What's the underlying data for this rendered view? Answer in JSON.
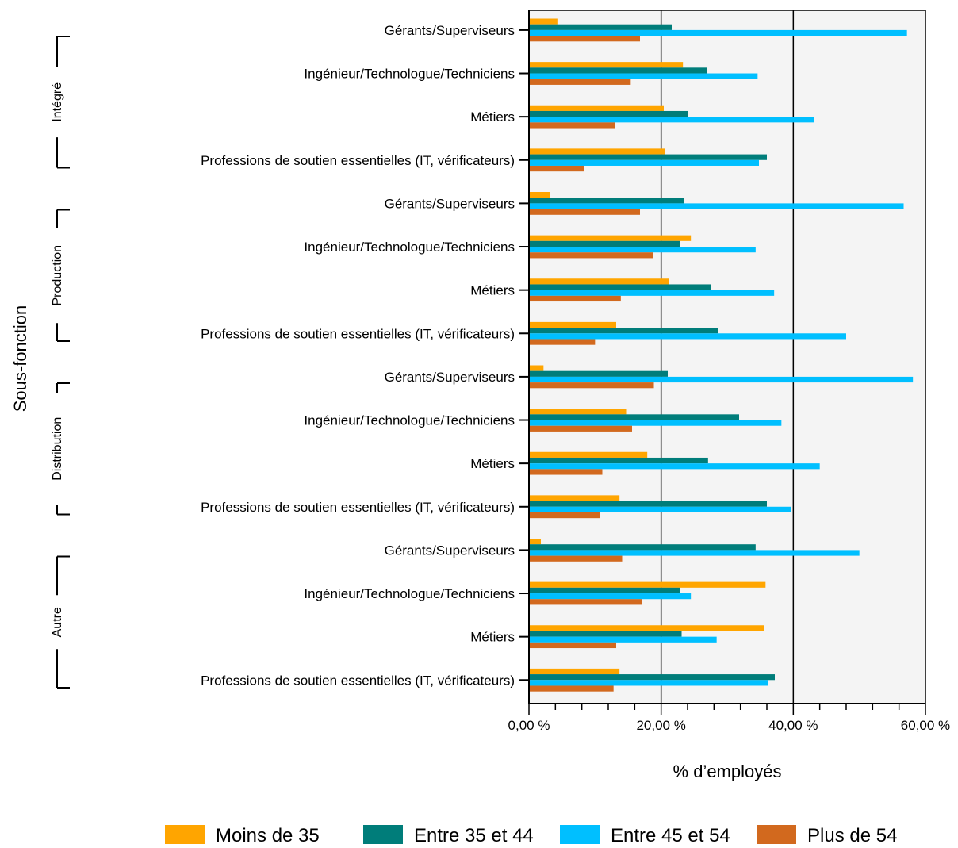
{
  "chart_data": {
    "type": "bar",
    "orientation": "horizontal",
    "title": "",
    "xlabel": "% d’employés",
    "ylabel": "Sous-fonction",
    "xlim": [
      0,
      60
    ],
    "x_ticks": [
      0,
      20,
      40,
      60
    ],
    "x_tick_labels": [
      "0,00 %",
      "20,00 %",
      "40,00 %",
      "60,00 %"
    ],
    "x_minor_step": 4,
    "grid": "vertical major gridlines",
    "legend_position": "bottom",
    "groups": [
      {
        "label": "Intégré",
        "start": 0,
        "end": 3
      },
      {
        "label": "Production",
        "start": 4,
        "end": 7
      },
      {
        "label": "Distribution",
        "start": 8,
        "end": 11
      },
      {
        "label": "Autre",
        "start": 12,
        "end": 15
      }
    ],
    "categories": [
      "Gérants/Superviseurs",
      "Ingénieur/Technologue/Techniciens",
      "Métiers",
      "Professions de soutien essentielles (IT, vérificateurs)",
      "Gérants/Superviseurs",
      "Ingénieur/Technologue/Techniciens",
      "Métiers",
      "Professions de soutien essentielles (IT, vérificateurs)",
      "Gérants/Superviseurs",
      "Ingénieur/Technologue/Techniciens",
      "Métiers",
      "Professions de soutien essentielles (IT, vérificateurs)",
      "Gérants/Superviseurs",
      "Ingénieur/Technologue/Techniciens",
      "Métiers",
      "Professions de soutien essentielles (IT, vérificateurs)"
    ],
    "series": [
      {
        "name": "Moins de 35",
        "color": "#FFA500",
        "values": [
          4.3,
          23.3,
          20.4,
          20.6,
          3.2,
          24.5,
          21.2,
          13.2,
          2.2,
          14.7,
          17.9,
          13.7,
          1.8,
          35.8,
          35.6,
          13.7
        ]
      },
      {
        "name": "Entre 35 et 44",
        "color": "#007D7A",
        "values": [
          21.6,
          26.9,
          24.0,
          36.0,
          23.5,
          22.8,
          27.6,
          28.6,
          21.0,
          31.8,
          27.1,
          36.0,
          34.3,
          22.8,
          23.1,
          37.2
        ]
      },
      {
        "name": "Entre 45 et 54",
        "color": "#00BFFF",
        "values": [
          57.2,
          34.6,
          43.2,
          34.8,
          56.7,
          34.3,
          37.1,
          48.0,
          58.1,
          38.2,
          44.0,
          39.6,
          50.0,
          24.5,
          28.4,
          36.2
        ]
      },
      {
        "name": "Plus de 54",
        "color": "#D2691E",
        "values": [
          16.8,
          15.4,
          13.0,
          8.4,
          16.8,
          18.8,
          13.9,
          10.0,
          18.9,
          15.6,
          11.1,
          10.8,
          14.1,
          17.1,
          13.2,
          12.8
        ]
      }
    ],
    "colors": {
      "plot_background": "#F4F4F4",
      "axis": "#000000",
      "gridline": "#000000"
    }
  }
}
